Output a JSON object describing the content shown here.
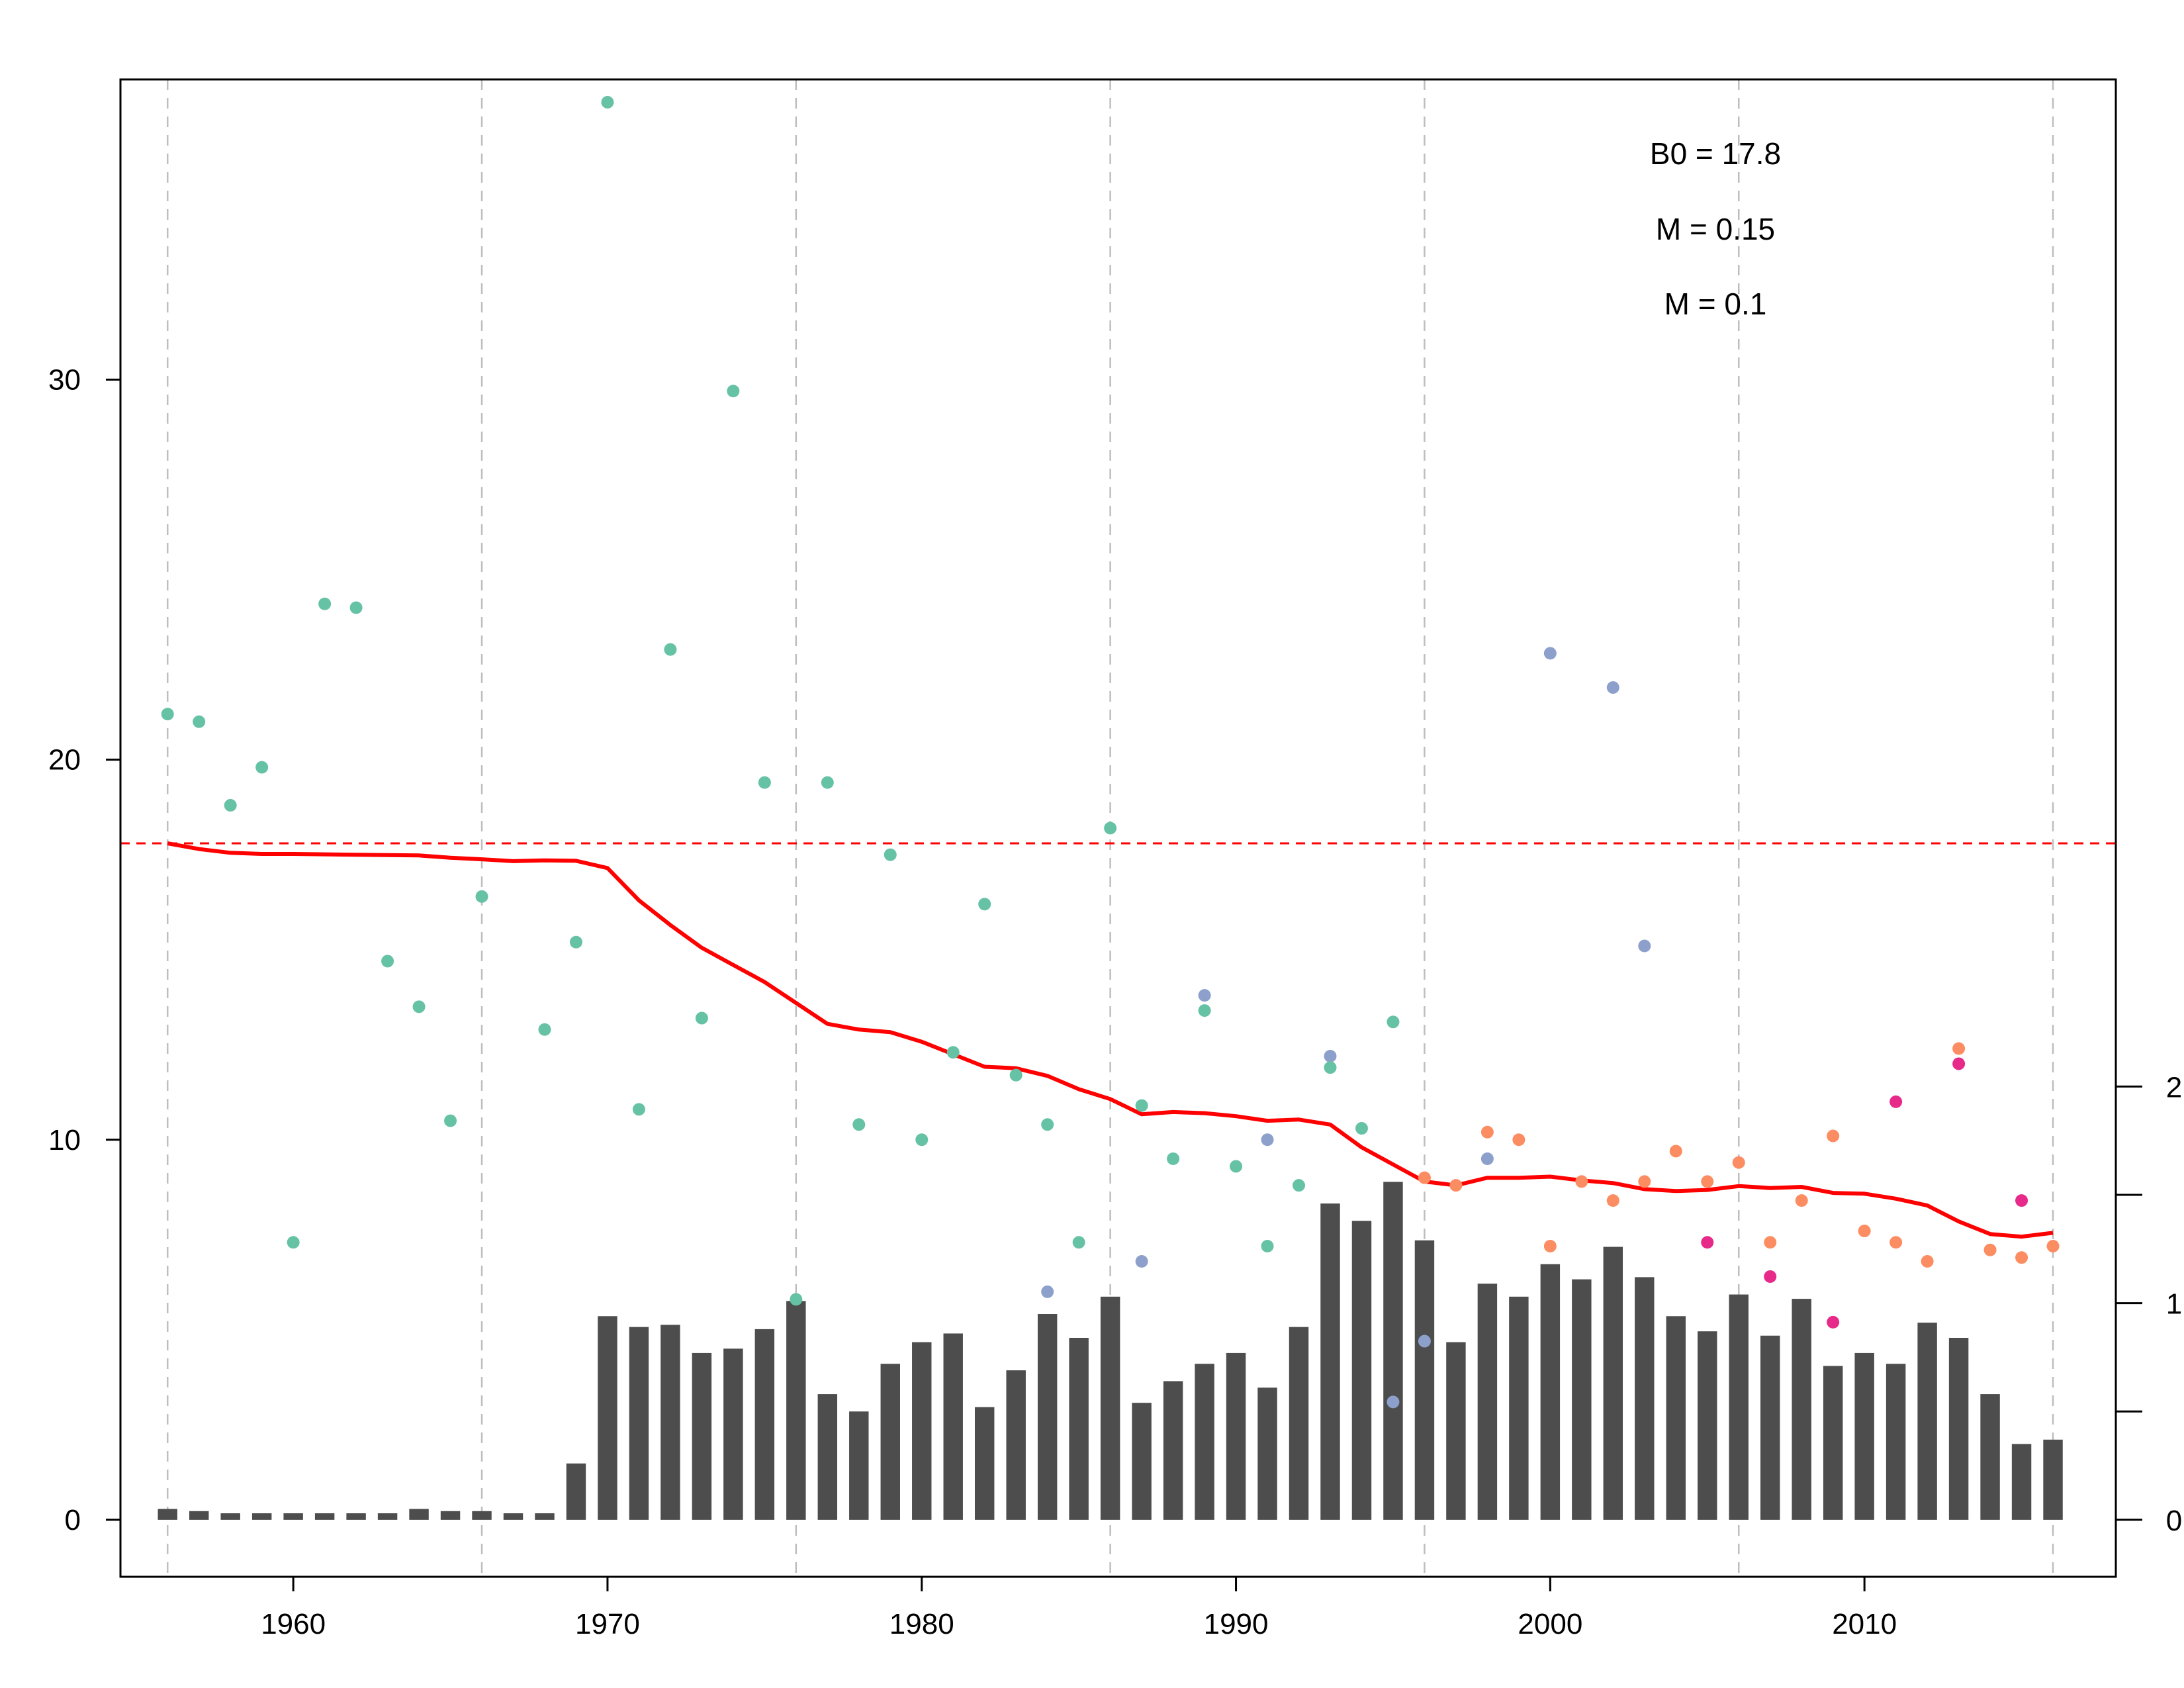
{
  "chart_data": {
    "type": "scatter",
    "title": "",
    "xlabel": "",
    "ylabel": "",
    "xlim": [
      1954.5,
      2018.0
    ],
    "ylim": [
      -1.5,
      37.9
    ],
    "x_ticks": [
      1960,
      1970,
      1980,
      1990,
      2000,
      2010
    ],
    "y_ticks": [
      0,
      10,
      20,
      30
    ],
    "x_tick_labels": [
      "1960",
      "1970",
      "1980",
      "1990",
      "2000",
      "2010"
    ],
    "y_tick_labels": [
      "0",
      "10",
      "20",
      "30"
    ],
    "vertical_gridlines_x": [
      1956,
      1966,
      1976,
      1986,
      1996,
      2006,
      2016
    ],
    "annotations": [
      "B0 = 17.8",
      "M = 0.15",
      "M = 0.1"
    ],
    "reference_line": {
      "y": 17.8,
      "color": "#ff0000",
      "style": "dashed"
    },
    "colors": {
      "green": "#66c2a5",
      "purple": "#8da0cb",
      "orange": "#fc8d62",
      "pink": "#e7298a",
      "trend": "#ff0000",
      "bars": "#4d4d4d",
      "grid": "#bebebe"
    },
    "points": [
      {
        "x": 1956,
        "y": 21.2,
        "c": "green"
      },
      {
        "x": 1957,
        "y": 21.0,
        "c": "green"
      },
      {
        "x": 1958,
        "y": 18.8,
        "c": "green"
      },
      {
        "x": 1959,
        "y": 19.8,
        "c": "green"
      },
      {
        "x": 1960,
        "y": 7.3,
        "c": "green"
      },
      {
        "x": 1961,
        "y": 24.1,
        "c": "green"
      },
      {
        "x": 1962,
        "y": 24.0,
        "c": "green"
      },
      {
        "x": 1963,
        "y": 14.7,
        "c": "green"
      },
      {
        "x": 1964,
        "y": 13.5,
        "c": "green"
      },
      {
        "x": 1965,
        "y": 10.5,
        "c": "green"
      },
      {
        "x": 1966,
        "y": 16.4,
        "c": "green"
      },
      {
        "x": 1968,
        "y": 12.9,
        "c": "green"
      },
      {
        "x": 1969,
        "y": 15.2,
        "c": "green"
      },
      {
        "x": 1970,
        "y": 37.3,
        "c": "green"
      },
      {
        "x": 1971,
        "y": 10.8,
        "c": "green"
      },
      {
        "x": 1972,
        "y": 22.9,
        "c": "green"
      },
      {
        "x": 1973,
        "y": 13.2,
        "c": "green"
      },
      {
        "x": 1974,
        "y": 29.7,
        "c": "green"
      },
      {
        "x": 1975,
        "y": 19.4,
        "c": "green"
      },
      {
        "x": 1976,
        "y": 5.8,
        "c": "green"
      },
      {
        "x": 1977,
        "y": 19.4,
        "c": "green"
      },
      {
        "x": 1978,
        "y": 10.4,
        "c": "green"
      },
      {
        "x": 1979,
        "y": 17.5,
        "c": "green"
      },
      {
        "x": 1980,
        "y": 10.0,
        "c": "green"
      },
      {
        "x": 1981,
        "y": 12.3,
        "c": "green"
      },
      {
        "x": 1982,
        "y": 16.2,
        "c": "green"
      },
      {
        "x": 1983,
        "y": 11.7,
        "c": "green"
      },
      {
        "x": 1984,
        "y": 10.4,
        "c": "green"
      },
      {
        "x": 1984,
        "y": 6.0,
        "c": "purple"
      },
      {
        "x": 1985,
        "y": 7.3,
        "c": "green"
      },
      {
        "x": 1986,
        "y": 18.2,
        "c": "green"
      },
      {
        "x": 1987,
        "y": 10.9,
        "c": "green"
      },
      {
        "x": 1987,
        "y": 6.8,
        "c": "purple"
      },
      {
        "x": 1988,
        "y": 9.5,
        "c": "green"
      },
      {
        "x": 1989,
        "y": 13.8,
        "c": "purple"
      },
      {
        "x": 1989,
        "y": 13.4,
        "c": "green"
      },
      {
        "x": 1990,
        "y": 9.3,
        "c": "green"
      },
      {
        "x": 1991,
        "y": 10.0,
        "c": "purple"
      },
      {
        "x": 1991,
        "y": 7.2,
        "c": "green"
      },
      {
        "x": 1992,
        "y": 8.8,
        "c": "green"
      },
      {
        "x": 1993,
        "y": 12.2,
        "c": "purple"
      },
      {
        "x": 1993,
        "y": 11.9,
        "c": "green"
      },
      {
        "x": 1994,
        "y": 10.3,
        "c": "green"
      },
      {
        "x": 1995,
        "y": 13.1,
        "c": "green"
      },
      {
        "x": 1995,
        "y": 3.1,
        "c": "purple"
      },
      {
        "x": 1996,
        "y": 9.0,
        "c": "orange"
      },
      {
        "x": 1996,
        "y": 4.7,
        "c": "purple"
      },
      {
        "x": 1997,
        "y": 8.8,
        "c": "orange"
      },
      {
        "x": 1998,
        "y": 10.2,
        "c": "orange"
      },
      {
        "x": 1998,
        "y": 9.5,
        "c": "purple"
      },
      {
        "x": 1999,
        "y": 10.0,
        "c": "orange"
      },
      {
        "x": 2000,
        "y": 22.8,
        "c": "purple"
      },
      {
        "x": 2000,
        "y": 7.2,
        "c": "orange"
      },
      {
        "x": 2001,
        "y": 8.9,
        "c": "orange"
      },
      {
        "x": 2002,
        "y": 21.9,
        "c": "purple"
      },
      {
        "x": 2002,
        "y": 8.4,
        "c": "orange"
      },
      {
        "x": 2003,
        "y": 15.1,
        "c": "purple"
      },
      {
        "x": 2003,
        "y": 8.9,
        "c": "orange"
      },
      {
        "x": 2004,
        "y": 9.7,
        "c": "orange"
      },
      {
        "x": 2005,
        "y": 8.9,
        "c": "orange"
      },
      {
        "x": 2005,
        "y": 7.3,
        "c": "pink"
      },
      {
        "x": 2006,
        "y": 9.4,
        "c": "orange"
      },
      {
        "x": 2007,
        "y": 7.3,
        "c": "orange"
      },
      {
        "x": 2007,
        "y": 6.4,
        "c": "pink"
      },
      {
        "x": 2008,
        "y": 8.4,
        "c": "orange"
      },
      {
        "x": 2009,
        "y": 10.1,
        "c": "orange"
      },
      {
        "x": 2009,
        "y": 5.2,
        "c": "pink"
      },
      {
        "x": 2010,
        "y": 7.6,
        "c": "orange"
      },
      {
        "x": 2011,
        "y": 11.0,
        "c": "pink"
      },
      {
        "x": 2011,
        "y": 7.3,
        "c": "orange"
      },
      {
        "x": 2012,
        "y": 6.8,
        "c": "orange"
      },
      {
        "x": 2013,
        "y": 12.4,
        "c": "orange"
      },
      {
        "x": 2013,
        "y": 12.0,
        "c": "pink"
      },
      {
        "x": 2014,
        "y": 7.1,
        "c": "orange"
      },
      {
        "x": 2015,
        "y": 8.4,
        "c": "pink"
      },
      {
        "x": 2015,
        "y": 6.9,
        "c": "orange"
      },
      {
        "x": 2016,
        "y": 7.2,
        "c": "orange"
      }
    ],
    "trend": {
      "x": [
        1956,
        1957,
        1958,
        1959,
        1960,
        1961,
        1962,
        1963,
        1964,
        1965,
        1966,
        1967,
        1968,
        1969,
        1970,
        1971,
        1972,
        1973,
        1974,
        1975,
        1976,
        1977,
        1978,
        1979,
        1980,
        1981,
        1982,
        1983,
        1984,
        1985,
        1986,
        1987,
        1988,
        1989,
        1990,
        1991,
        1992,
        1993,
        1994,
        1995,
        1996,
        1997,
        1998,
        1999,
        2000,
        2001,
        2002,
        2003,
        2004,
        2005,
        2006,
        2007,
        2008,
        2009,
        2010,
        2011,
        2012,
        2013,
        2014,
        2015,
        2016
      ],
      "y": [
        17.8,
        17.65,
        17.55,
        17.52,
        17.52,
        17.51,
        17.5,
        17.49,
        17.48,
        17.42,
        17.38,
        17.33,
        17.35,
        17.34,
        17.15,
        16.3,
        15.65,
        15.05,
        14.6,
        14.15,
        13.6,
        13.05,
        12.9,
        12.83,
        12.58,
        12.25,
        11.92,
        11.88,
        11.68,
        11.33,
        11.07,
        10.67,
        10.73,
        10.7,
        10.62,
        10.5,
        10.53,
        10.4,
        9.8,
        9.35,
        8.9,
        8.8,
        9.0,
        9.0,
        9.03,
        8.93,
        8.86,
        8.7,
        8.65,
        8.68,
        8.78,
        8.73,
        8.76,
        8.6,
        8.58,
        8.45,
        8.27,
        7.85,
        7.52,
        7.45,
        7.55
      ]
    },
    "bars": {
      "x": [
        1956,
        1957,
        1958,
        1959,
        1960,
        1961,
        1962,
        1963,
        1964,
        1965,
        1966,
        1967,
        1968,
        1969,
        1970,
        1971,
        1972,
        1973,
        1974,
        1975,
        1976,
        1977,
        1978,
        1979,
        1980,
        1981,
        1982,
        1983,
        1984,
        1985,
        1986,
        1987,
        1988,
        1989,
        1990,
        1991,
        1992,
        1993,
        1994,
        1995,
        1996,
        1997,
        1998,
        1999,
        2000,
        2001,
        2002,
        2003,
        2004,
        2005,
        2006,
        2007,
        2008,
        2009,
        2010,
        2011,
        2012,
        2013,
        2014,
        2015,
        2016
      ],
      "values": [
        0.05,
        0.04,
        0.03,
        0.03,
        0.03,
        0.03,
        0.03,
        0.03,
        0.05,
        0.04,
        0.04,
        0.03,
        0.03,
        0.26,
        0.94,
        0.89,
        0.9,
        0.77,
        0.79,
        0.88,
        1.01,
        0.58,
        0.5,
        0.72,
        0.82,
        0.86,
        0.52,
        0.69,
        0.95,
        0.84,
        1.03,
        0.54,
        0.64,
        0.72,
        0.77,
        0.61,
        0.89,
        1.46,
        1.38,
        1.56,
        1.29,
        0.82,
        1.09,
        1.03,
        1.18,
        1.11,
        1.26,
        1.12,
        0.94,
        0.87,
        1.04,
        0.85,
        1.02,
        0.71,
        0.77,
        0.72,
        0.91,
        0.84,
        0.58,
        0.35,
        0.37
      ],
      "axis_ticks": [
        0,
        1,
        2
      ],
      "axis_tick_labels": [
        "0",
        "1",
        "2"
      ],
      "axis_scale": 10
    }
  }
}
